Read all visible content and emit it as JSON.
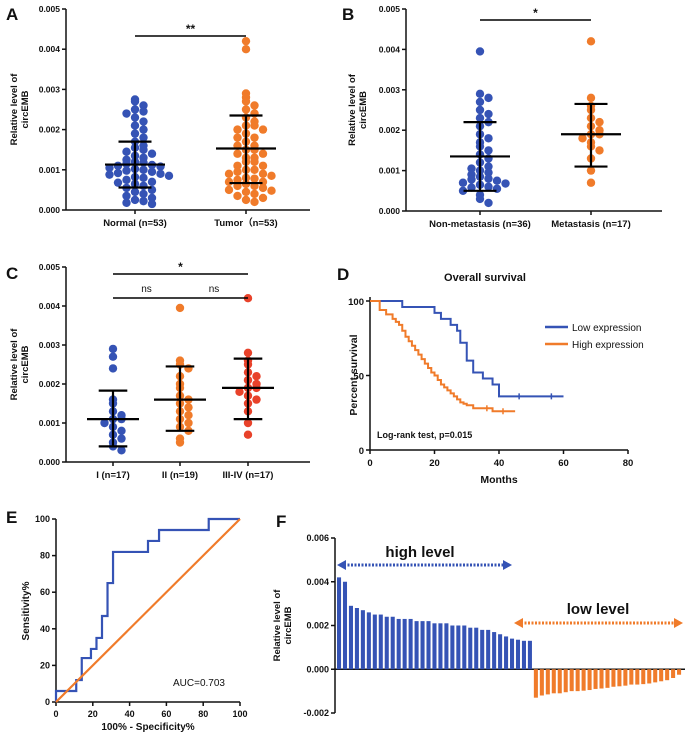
{
  "colors": {
    "blue": "#3553B5",
    "orange": "#F07B2A",
    "red_orange": "#E8422A",
    "axis": "#111111"
  },
  "chart_data": [
    {
      "panel": "A",
      "type": "scatter",
      "ylabel": "Relative level of circEMB",
      "ylim": [
        0,
        0.005
      ],
      "yticks": [
        "0.000",
        "0.001",
        "0.002",
        "0.003",
        "0.004",
        "0.005"
      ],
      "categories": [
        "Normal (n=53)",
        "Tumor（n=53)"
      ],
      "groups": [
        {
          "name": "Normal (n=53)",
          "color": "blue",
          "mean": 0.00113,
          "sd_low": 0.00056,
          "sd_high": 0.0017,
          "values": [
            0.00275,
            0.0027,
            0.0026,
            0.0025,
            0.00245,
            0.0024,
            0.0023,
            0.0022,
            0.0021,
            0.002,
            0.0019,
            0.0018,
            0.0017,
            0.0016,
            0.00155,
            0.0015,
            0.00145,
            0.0014,
            0.00135,
            0.0013,
            0.00125,
            0.0012,
            0.00118,
            0.00115,
            0.00112,
            0.0011,
            0.00108,
            0.00105,
            0.00102,
            0.001,
            0.00098,
            0.00095,
            0.00092,
            0.0009,
            0.00088,
            0.00085,
            0.00082,
            0.0008,
            0.00075,
            0.0007,
            0.00068,
            0.00065,
            0.0006,
            0.00055,
            0.0005,
            0.00045,
            0.0004,
            0.00035,
            0.0003,
            0.00025,
            0.00022,
            0.00018,
            0.00015
          ]
        },
        {
          "name": "Tumor（n=53)",
          "color": "orange",
          "mean": 0.00153,
          "sd_low": 0.00067,
          "sd_high": 0.00235,
          "values": [
            0.0042,
            0.004,
            0.0029,
            0.0028,
            0.0027,
            0.0026,
            0.0025,
            0.0024,
            0.0023,
            0.0022,
            0.0021,
            0.0021,
            0.002,
            0.002,
            0.0019,
            0.0018,
            0.0018,
            0.0017,
            0.0016,
            0.0016,
            0.0015,
            0.0015,
            0.0014,
            0.0014,
            0.0013,
            0.0013,
            0.0012,
            0.0012,
            0.0011,
            0.0011,
            0.001,
            0.001,
            0.00095,
            0.0009,
            0.0009,
            0.00085,
            0.0008,
            0.00078,
            0.00075,
            0.0007,
            0.0007,
            0.00065,
            0.0006,
            0.0006,
            0.00055,
            0.0005,
            0.00048,
            0.00045,
            0.0004,
            0.00035,
            0.0003,
            0.00025,
            0.0002
          ]
        }
      ],
      "significance": [
        {
          "from": 0,
          "to": 1,
          "label": "**"
        }
      ]
    },
    {
      "panel": "B",
      "type": "scatter",
      "ylabel": "Relative level of circEMB",
      "ylim": [
        0,
        0.005
      ],
      "yticks": [
        "0.000",
        "0.001",
        "0.002",
        "0.003",
        "0.004",
        "0.005"
      ],
      "categories": [
        "Non-metastasis (n=36)",
        "Metastasis (n=17)"
      ],
      "groups": [
        {
          "name": "Non-metastasis (n=36)",
          "color": "blue",
          "mean": 0.00135,
          "sd_low": 0.0005,
          "sd_high": 0.0022,
          "values": [
            0.00395,
            0.0029,
            0.0028,
            0.0027,
            0.0025,
            0.0024,
            0.0023,
            0.0022,
            0.0021,
            0.0019,
            0.0018,
            0.0017,
            0.0016,
            0.0015,
            0.0014,
            0.0013,
            0.0012,
            0.0011,
            0.00105,
            0.001,
            0.00095,
            0.0009,
            0.00085,
            0.0008,
            0.00078,
            0.00075,
            0.0007,
            0.00068,
            0.00065,
            0.0006,
            0.00058,
            0.00055,
            0.0005,
            0.0004,
            0.0003,
            0.0002
          ]
        },
        {
          "name": "Metastasis (n=17)",
          "color": "orange",
          "mean": 0.0019,
          "sd_low": 0.0011,
          "sd_high": 0.00265,
          "values": [
            0.0042,
            0.0028,
            0.0026,
            0.0025,
            0.0023,
            0.0022,
            0.0021,
            0.002,
            0.0019,
            0.0019,
            0.0018,
            0.0017,
            0.0016,
            0.0015,
            0.0013,
            0.001,
            0.0007
          ]
        }
      ],
      "significance": [
        {
          "from": 0,
          "to": 1,
          "label": "*"
        }
      ]
    },
    {
      "panel": "C",
      "type": "scatter",
      "ylabel": "Relative level of circEMB",
      "ylim": [
        0,
        0.005
      ],
      "yticks": [
        "0.000",
        "0.001",
        "0.002",
        "0.003",
        "0.004",
        "0.005"
      ],
      "categories": [
        "I (n=17)",
        "II (n=19)",
        "III-IV (n=17)"
      ],
      "groups": [
        {
          "name": "I (n=17)",
          "color": "blue",
          "mean": 0.0011,
          "sd_low": 0.0004,
          "sd_high": 0.00183,
          "values": [
            0.0029,
            0.0027,
            0.0024,
            0.0016,
            0.0015,
            0.0013,
            0.0012,
            0.0011,
            0.0011,
            0.001,
            0.0009,
            0.0008,
            0.0007,
            0.0006,
            0.0005,
            0.0004,
            0.0003
          ]
        },
        {
          "name": "II (n=19)",
          "color": "orange",
          "mean": 0.0016,
          "sd_low": 0.0008,
          "sd_high": 0.00245,
          "values": [
            0.00395,
            0.0026,
            0.0025,
            0.0024,
            0.0022,
            0.002,
            0.0019,
            0.0017,
            0.0016,
            0.0015,
            0.0014,
            0.0013,
            0.0012,
            0.0011,
            0.001,
            0.0009,
            0.0008,
            0.0006,
            0.0005
          ]
        },
        {
          "name": "III-IV (n=17)",
          "color": "red_orange",
          "mean": 0.0019,
          "sd_low": 0.0011,
          "sd_high": 0.00265,
          "values": [
            0.0042,
            0.0028,
            0.0026,
            0.0025,
            0.0023,
            0.0022,
            0.0021,
            0.002,
            0.0019,
            0.0019,
            0.0018,
            0.0017,
            0.0016,
            0.0015,
            0.0013,
            0.001,
            0.0007
          ]
        }
      ],
      "significance": [
        {
          "from": 0,
          "to": 2,
          "label": "*"
        },
        {
          "from": 0,
          "to": 1,
          "label": "ns"
        },
        {
          "from": 1,
          "to": 2,
          "label": "ns"
        }
      ]
    },
    {
      "panel": "D",
      "type": "line",
      "title": "Overall survival",
      "xlabel": "Months",
      "ylabel": "Percent survival",
      "xlim": [
        0,
        80
      ],
      "ylim": [
        0,
        100
      ],
      "xticks": [
        0,
        20,
        40,
        60,
        80
      ],
      "yticks": [
        0,
        50,
        100
      ],
      "annotation": "Log-rank test, p=0.015",
      "series": [
        {
          "name": "Low expression",
          "color": "blue",
          "x": [
            0,
            5,
            10,
            15,
            20,
            22,
            25,
            27,
            28,
            30,
            32,
            35,
            38,
            40,
            45,
            50,
            55,
            60
          ],
          "y": [
            100,
            100,
            96,
            96,
            92,
            88,
            84,
            80,
            72,
            60,
            52,
            48,
            44,
            36,
            36,
            36,
            36,
            36
          ]
        },
        {
          "name": "High expression",
          "color": "orange",
          "x": [
            0,
            3,
            5,
            7,
            8,
            9,
            10,
            11,
            12,
            13,
            14,
            15,
            16,
            17,
            18,
            19,
            20,
            21,
            22,
            23,
            24,
            25,
            26,
            27,
            28,
            29,
            30,
            31,
            32,
            35,
            38,
            40,
            45
          ],
          "y": [
            100,
            94,
            91,
            88,
            86,
            84,
            80,
            76,
            73,
            70,
            67,
            64,
            61,
            58,
            55,
            52,
            50,
            47,
            44,
            42,
            40,
            38,
            36,
            34,
            32,
            31,
            30,
            30,
            28,
            28,
            26,
            26,
            26
          ]
        }
      ]
    },
    {
      "panel": "E",
      "type": "line",
      "xlabel": "100% - Specificity%",
      "ylabel": "Sensitivity%",
      "xlim": [
        0,
        100
      ],
      "ylim": [
        0,
        100
      ],
      "xticks": [
        0,
        20,
        40,
        60,
        80,
        100
      ],
      "yticks": [
        0,
        20,
        40,
        60,
        80,
        100
      ],
      "annotation": "AUC=0.703",
      "series": [
        {
          "name": "ROC",
          "color": "blue",
          "x": [
            0,
            0,
            11,
            11,
            14,
            14,
            19,
            19,
            22,
            22,
            25,
            25,
            28,
            28,
            31,
            31,
            50,
            50,
            56,
            56,
            83,
            83,
            100
          ],
          "y": [
            0,
            6,
            6,
            12,
            12,
            24,
            24,
            29,
            29,
            35,
            35,
            47,
            47,
            65,
            65,
            82,
            82,
            88,
            88,
            94,
            94,
            100,
            100
          ]
        },
        {
          "name": "Reference",
          "color": "orange",
          "x": [
            0,
            100
          ],
          "y": [
            0,
            100
          ]
        }
      ]
    },
    {
      "panel": "F",
      "type": "bar",
      "ylabel": "Relative level of circEMB",
      "ylim": [
        -0.002,
        0.006
      ],
      "yticks": [
        "-0.002",
        "0.000",
        "0.002",
        "0.004",
        "0.006"
      ],
      "annotations": [
        "high level",
        "low level"
      ],
      "series": [
        {
          "name": "high level",
          "color": "blue",
          "values": [
            0.0042,
            0.004,
            0.0029,
            0.0028,
            0.0027,
            0.0026,
            0.0025,
            0.0025,
            0.0024,
            0.0024,
            0.0023,
            0.0023,
            0.0023,
            0.0022,
            0.0022,
            0.0022,
            0.0021,
            0.0021,
            0.0021,
            0.002,
            0.002,
            0.002,
            0.0019,
            0.0019,
            0.0018,
            0.0018,
            0.0017,
            0.0016,
            0.0015,
            0.0014,
            0.00135,
            0.0013,
            0.0013
          ]
        },
        {
          "name": "low level",
          "color": "orange",
          "values": [
            -0.0013,
            -0.0012,
            -0.00115,
            -0.0011,
            -0.0011,
            -0.00105,
            -0.001,
            -0.001,
            -0.00098,
            -0.00095,
            -0.0009,
            -0.00088,
            -0.00085,
            -0.0008,
            -0.00078,
            -0.00075,
            -0.0007,
            -0.0007,
            -0.00068,
            -0.00065,
            -0.0006,
            -0.00055,
            -0.0005,
            -0.0004,
            -0.00025
          ]
        }
      ]
    }
  ]
}
